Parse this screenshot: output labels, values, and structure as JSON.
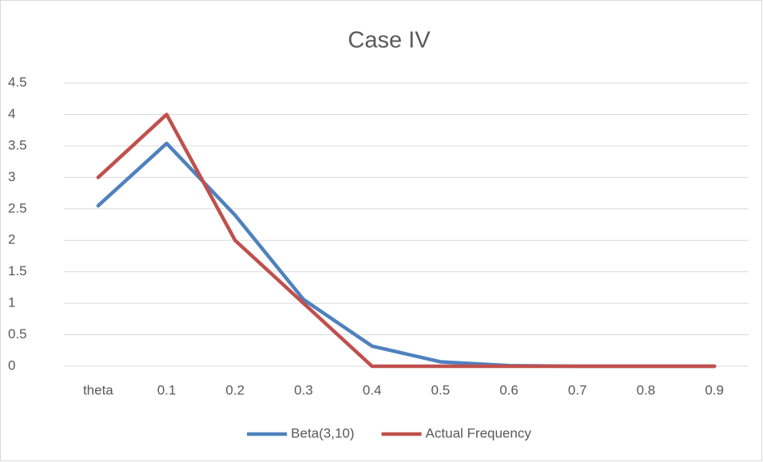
{
  "chart_data": {
    "type": "line",
    "title": "Case IV",
    "categories": [
      "theta",
      "0.1",
      "0.2",
      "0.3",
      "0.4",
      "0.5",
      "0.6",
      "0.7",
      "0.8",
      "0.9"
    ],
    "series": [
      {
        "name": "Beta(3,10)",
        "color": "#4f81bd",
        "values": [
          2.55,
          3.54,
          2.4,
          1.06,
          0.32,
          0.07,
          0.01,
          0,
          0,
          0
        ]
      },
      {
        "name": "Actual Frequency",
        "color": "#c0504d",
        "values": [
          3,
          4,
          2,
          1,
          0,
          0,
          0,
          0,
          0,
          0
        ]
      }
    ],
    "ylim": [
      0,
      4.5
    ],
    "yticks": [
      0,
      0.5,
      1,
      1.5,
      2,
      2.5,
      3,
      3.5,
      4,
      4.5
    ],
    "grid": true,
    "legend": "bottom"
  }
}
